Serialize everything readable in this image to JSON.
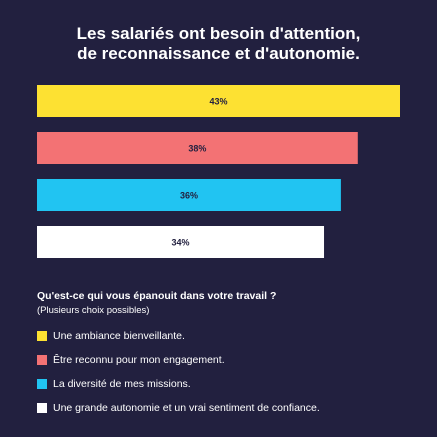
{
  "title": [
    "Les salariés ont besoin d'attention,",
    "de reconnaissance et d'autonomie."
  ],
  "question": "Qu'est-ce qui vous épanouit dans votre travail ?",
  "note": "(Plusieurs choix possibles)",
  "colors": {
    "background": "#22203f",
    "text": "#ffffff",
    "label_text": "#22203f"
  },
  "chart_data": {
    "type": "bar",
    "orientation": "horizontal",
    "categories": [
      "Une ambiance bienveillante.",
      "Être reconnu pour mon engagement.",
      "La diversité de mes missions.",
      "Une grande autonomie et un vrai sentiment de confiance."
    ],
    "values": [
      43,
      38,
      36,
      34
    ],
    "value_labels": [
      "43%",
      "38%",
      "36%",
      "34%"
    ],
    "colors": [
      "#fde132",
      "#f37274",
      "#21c4f2",
      "#ffffff"
    ],
    "title": "Les salariés ont besoin d'attention, de reconnaissance et d'autonomie.",
    "xlim": [
      0,
      43
    ],
    "grid": false,
    "legend": "bottom-left"
  }
}
